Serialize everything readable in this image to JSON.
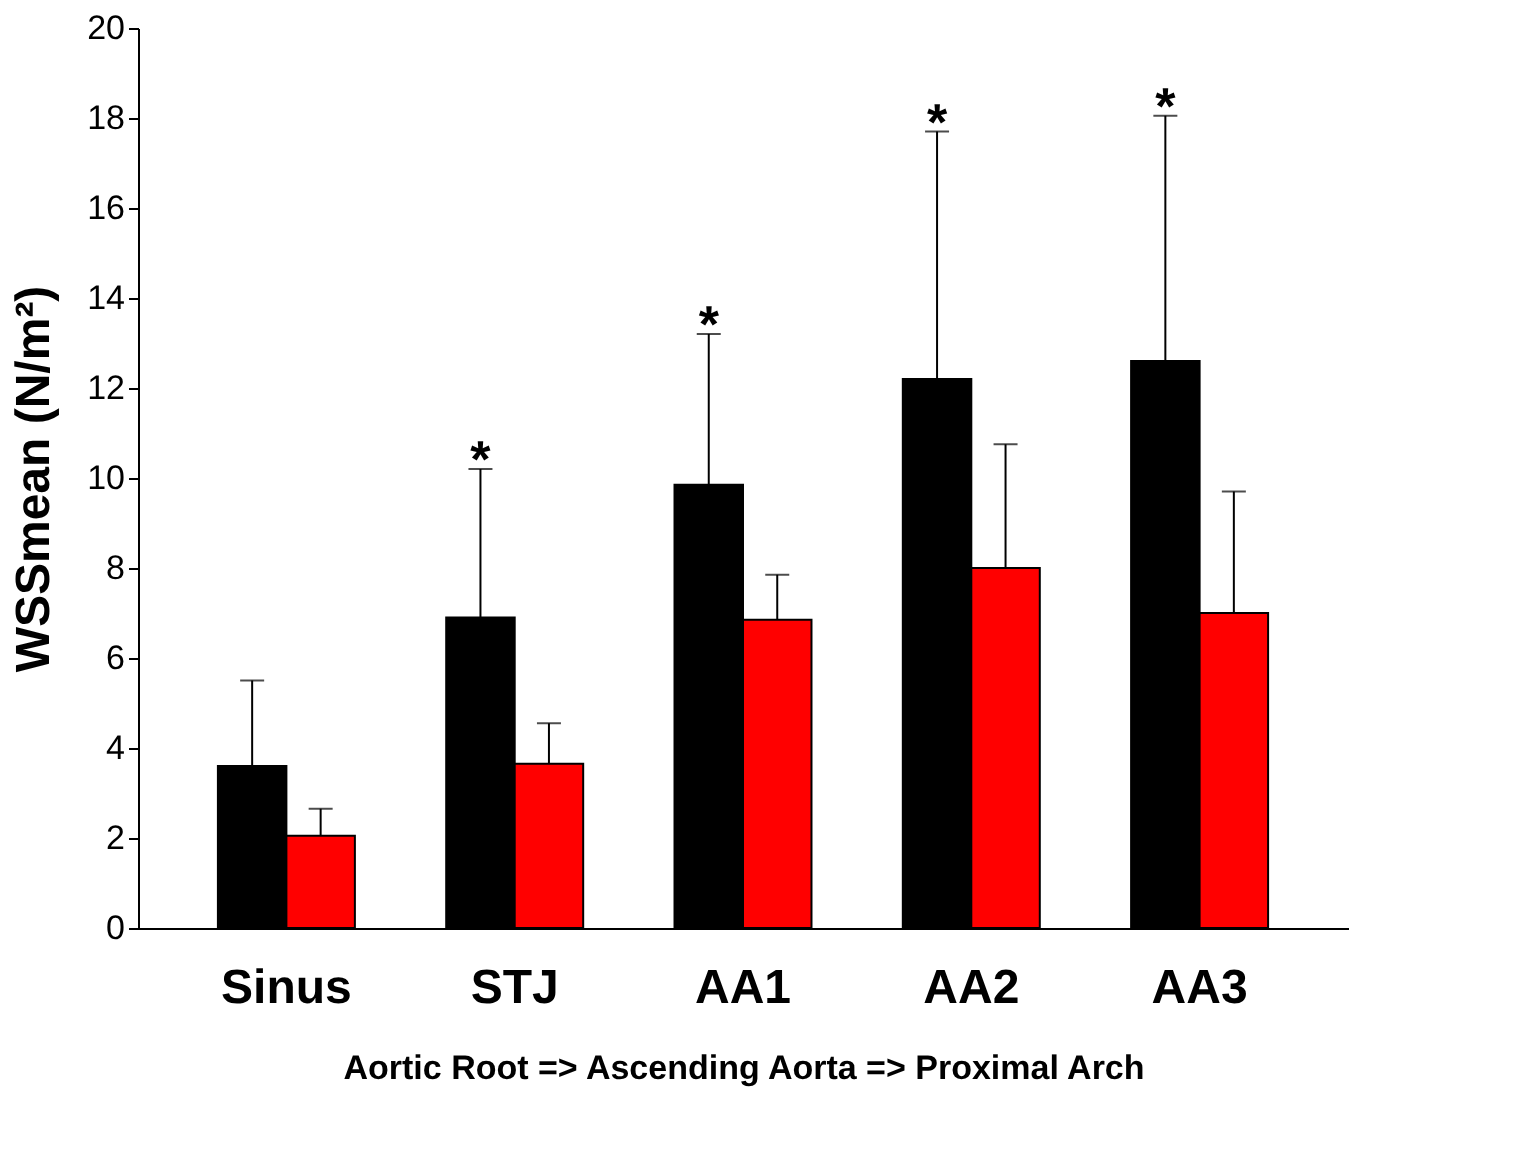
{
  "chart_data": {
    "type": "bar",
    "ylabel": "WSSmean (N/m²)",
    "xlabel": "Aortic Root  =>  Ascending Aorta   => Proximal Arch",
    "categories": [
      "Sinus",
      "STJ",
      "AA1",
      "AA2",
      "AA3"
    ],
    "series": [
      {
        "color": "#000000",
        "values": [
          3.6,
          6.9,
          9.85,
          12.2,
          12.6
        ],
        "errors": [
          [
            3.6,
            5.5
          ],
          [
            6.9,
            10.2
          ],
          [
            9.85,
            13.2
          ],
          [
            12.2,
            17.7
          ],
          [
            12.6,
            18.05
          ]
        ]
      },
      {
        "color": "#ff0000",
        "values": [
          2.05,
          3.65,
          6.85,
          8.0,
          7.0
        ],
        "errors": [
          [
            2.05,
            2.65
          ],
          [
            3.65,
            4.55
          ],
          [
            6.85,
            7.85
          ],
          [
            8.0,
            10.75
          ],
          [
            7.0,
            9.7
          ]
        ]
      }
    ],
    "annotations": [
      "*",
      "*",
      "*",
      "*"
    ],
    "ylim": [
      0,
      20
    ],
    "yticks": [
      0,
      2,
      4,
      6,
      8,
      10,
      12,
      14,
      16,
      18,
      20
    ],
    "grid": false,
    "legend": false
  }
}
